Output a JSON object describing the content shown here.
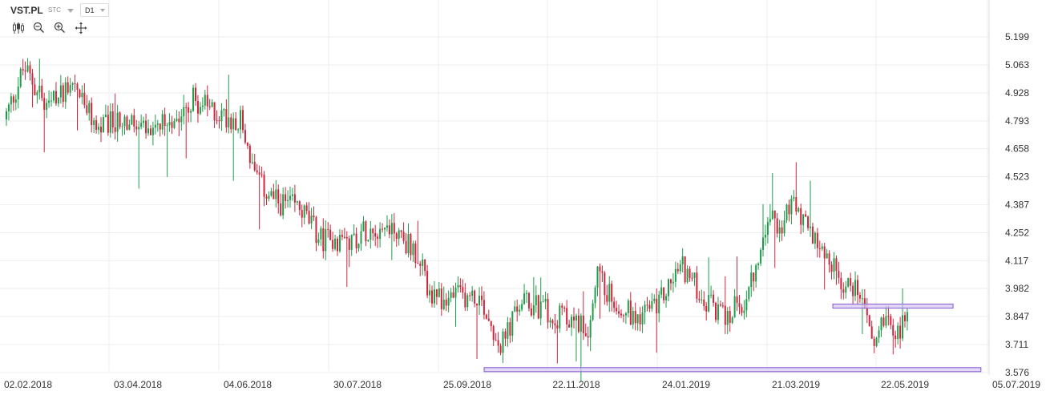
{
  "header": {
    "symbol": "VST.PL",
    "exchange": "STC",
    "timeframe": "D1"
  },
  "toolbar": {
    "tools": [
      "candlestick-type-icon",
      "zoom-out-icon",
      "zoom-in-icon",
      "move-icon"
    ]
  },
  "colors": {
    "up": "#1e9e4a",
    "down": "#d0243a",
    "grid": "#eeeeee",
    "zone_fill": "#d9c8f3",
    "zone_stroke": "#8f6ad6"
  },
  "chart_data": {
    "type": "candlestick",
    "y_ticks": [
      "5.199",
      "5.063",
      "4.928",
      "4.793",
      "4.658",
      "4.523",
      "4.387",
      "4.252",
      "4.117",
      "3.982",
      "3.847",
      "3.711",
      "3.576"
    ],
    "ylim": [
      3.576,
      5.199
    ],
    "x_ticks": [
      "02.02.2018",
      "03.04.2018",
      "04.06.2018",
      "30.07.2018",
      "25.09.2018",
      "22.11.2018",
      "24.01.2019",
      "21.03.2019",
      "22.05.2019",
      "05.07.2019"
    ],
    "grid": true,
    "series": [
      {
        "x": "02.02.2018",
        "open": 4.9,
        "high": 5.15,
        "low": 4.62,
        "close": 4.72
      },
      {
        "x": "03.04.2018",
        "open": 4.85,
        "high": 5.01,
        "low": 4.55,
        "close": 4.82
      },
      {
        "x": "04.06.2018",
        "open": 4.85,
        "high": 4.98,
        "low": 4.7,
        "close": 4.8
      },
      {
        "x": "30.07.2018",
        "open": 4.28,
        "high": 4.38,
        "low": 4.13,
        "close": 4.22
      },
      {
        "x": "25.09.2018",
        "open": 3.96,
        "high": 4.06,
        "low": 3.85,
        "close": 3.9
      },
      {
        "x": "22.11.2018",
        "open": 3.87,
        "high": 3.95,
        "low": 3.8,
        "close": 3.86
      },
      {
        "x": "24.01.2019",
        "open": 3.95,
        "high": 4.15,
        "low": 3.85,
        "close": 4.05
      },
      {
        "x": "21.03.2019",
        "open": 4.32,
        "high": 4.46,
        "low": 4.24,
        "close": 4.3
      },
      {
        "x": "22.05.2019",
        "open": 3.83,
        "high": 3.93,
        "low": 3.73,
        "close": 3.84
      }
    ],
    "zones": [
      {
        "x_start": "11.04.2019",
        "x_end": "10.06.2019",
        "y_low": 3.893,
        "y_high": 3.907
      },
      {
        "x_start": "04.10.2018",
        "x_end": "21.06.2019",
        "y_low": 3.588,
        "y_high": 3.6
      }
    ]
  }
}
